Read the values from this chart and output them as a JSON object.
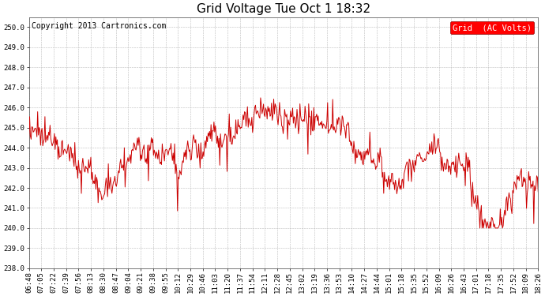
{
  "title": "Grid Voltage Tue Oct 1 18:32",
  "copyright": "Copyright 2013 Cartronics.com",
  "legend_label": "Grid  (AC Volts)",
  "line_color": "#cc0000",
  "background_color": "#ffffff",
  "plot_bg_color": "#ffffff",
  "grid_color": "#bbbbbb",
  "ylim": [
    238.0,
    250.5
  ],
  "yticks": [
    238.0,
    239.0,
    240.0,
    241.0,
    242.0,
    243.0,
    244.0,
    245.0,
    246.0,
    247.0,
    248.0,
    249.0,
    250.0
  ],
  "xtick_labels": [
    "06:48",
    "07:05",
    "07:22",
    "07:39",
    "07:56",
    "08:13",
    "08:30",
    "08:47",
    "09:04",
    "09:21",
    "09:38",
    "09:55",
    "10:12",
    "10:29",
    "10:46",
    "11:03",
    "11:20",
    "11:37",
    "11:54",
    "12:11",
    "12:28",
    "12:45",
    "13:02",
    "13:19",
    "13:36",
    "13:53",
    "14:10",
    "14:27",
    "14:44",
    "15:01",
    "15:18",
    "15:35",
    "15:52",
    "16:09",
    "16:26",
    "16:43",
    "17:01",
    "17:18",
    "17:35",
    "17:52",
    "18:09",
    "18:26"
  ],
  "title_fontsize": 11,
  "copyright_fontsize": 7,
  "legend_fontsize": 7.5,
  "tick_fontsize": 6.5,
  "line_width": 0.7
}
